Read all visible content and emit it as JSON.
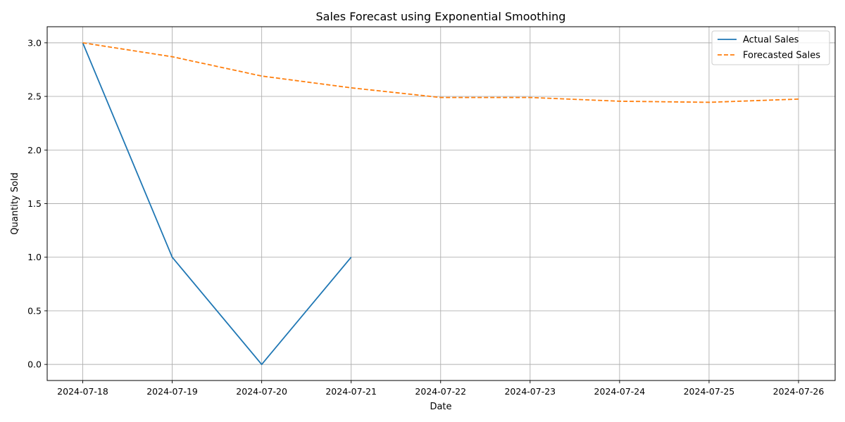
{
  "chart_data": {
    "type": "line",
    "title": "Sales Forecast using Exponential Smoothing",
    "xlabel": "Date",
    "ylabel": "Quantity Sold",
    "x": [
      "2024-07-18",
      "2024-07-19",
      "2024-07-20",
      "2024-07-21",
      "2024-07-22",
      "2024-07-23",
      "2024-07-24",
      "2024-07-25",
      "2024-07-26"
    ],
    "ylim": [
      -0.15,
      3.15
    ],
    "yticks": [
      "0.0",
      "0.5",
      "1.0",
      "1.5",
      "2.0",
      "2.5",
      "3.0"
    ],
    "grid": true,
    "legend_position": "top-right",
    "series": [
      {
        "name": "Actual Sales",
        "color": "#1f77b4",
        "style": "solid",
        "values": [
          3,
          1,
          0,
          1,
          null,
          null,
          null,
          null,
          null
        ]
      },
      {
        "name": "Forecasted Sales",
        "color": "#ff7f0e",
        "style": "dashed",
        "values": [
          3.0,
          2.87,
          2.69,
          2.58,
          2.49,
          2.49,
          2.455,
          2.445,
          2.475
        ]
      }
    ]
  }
}
